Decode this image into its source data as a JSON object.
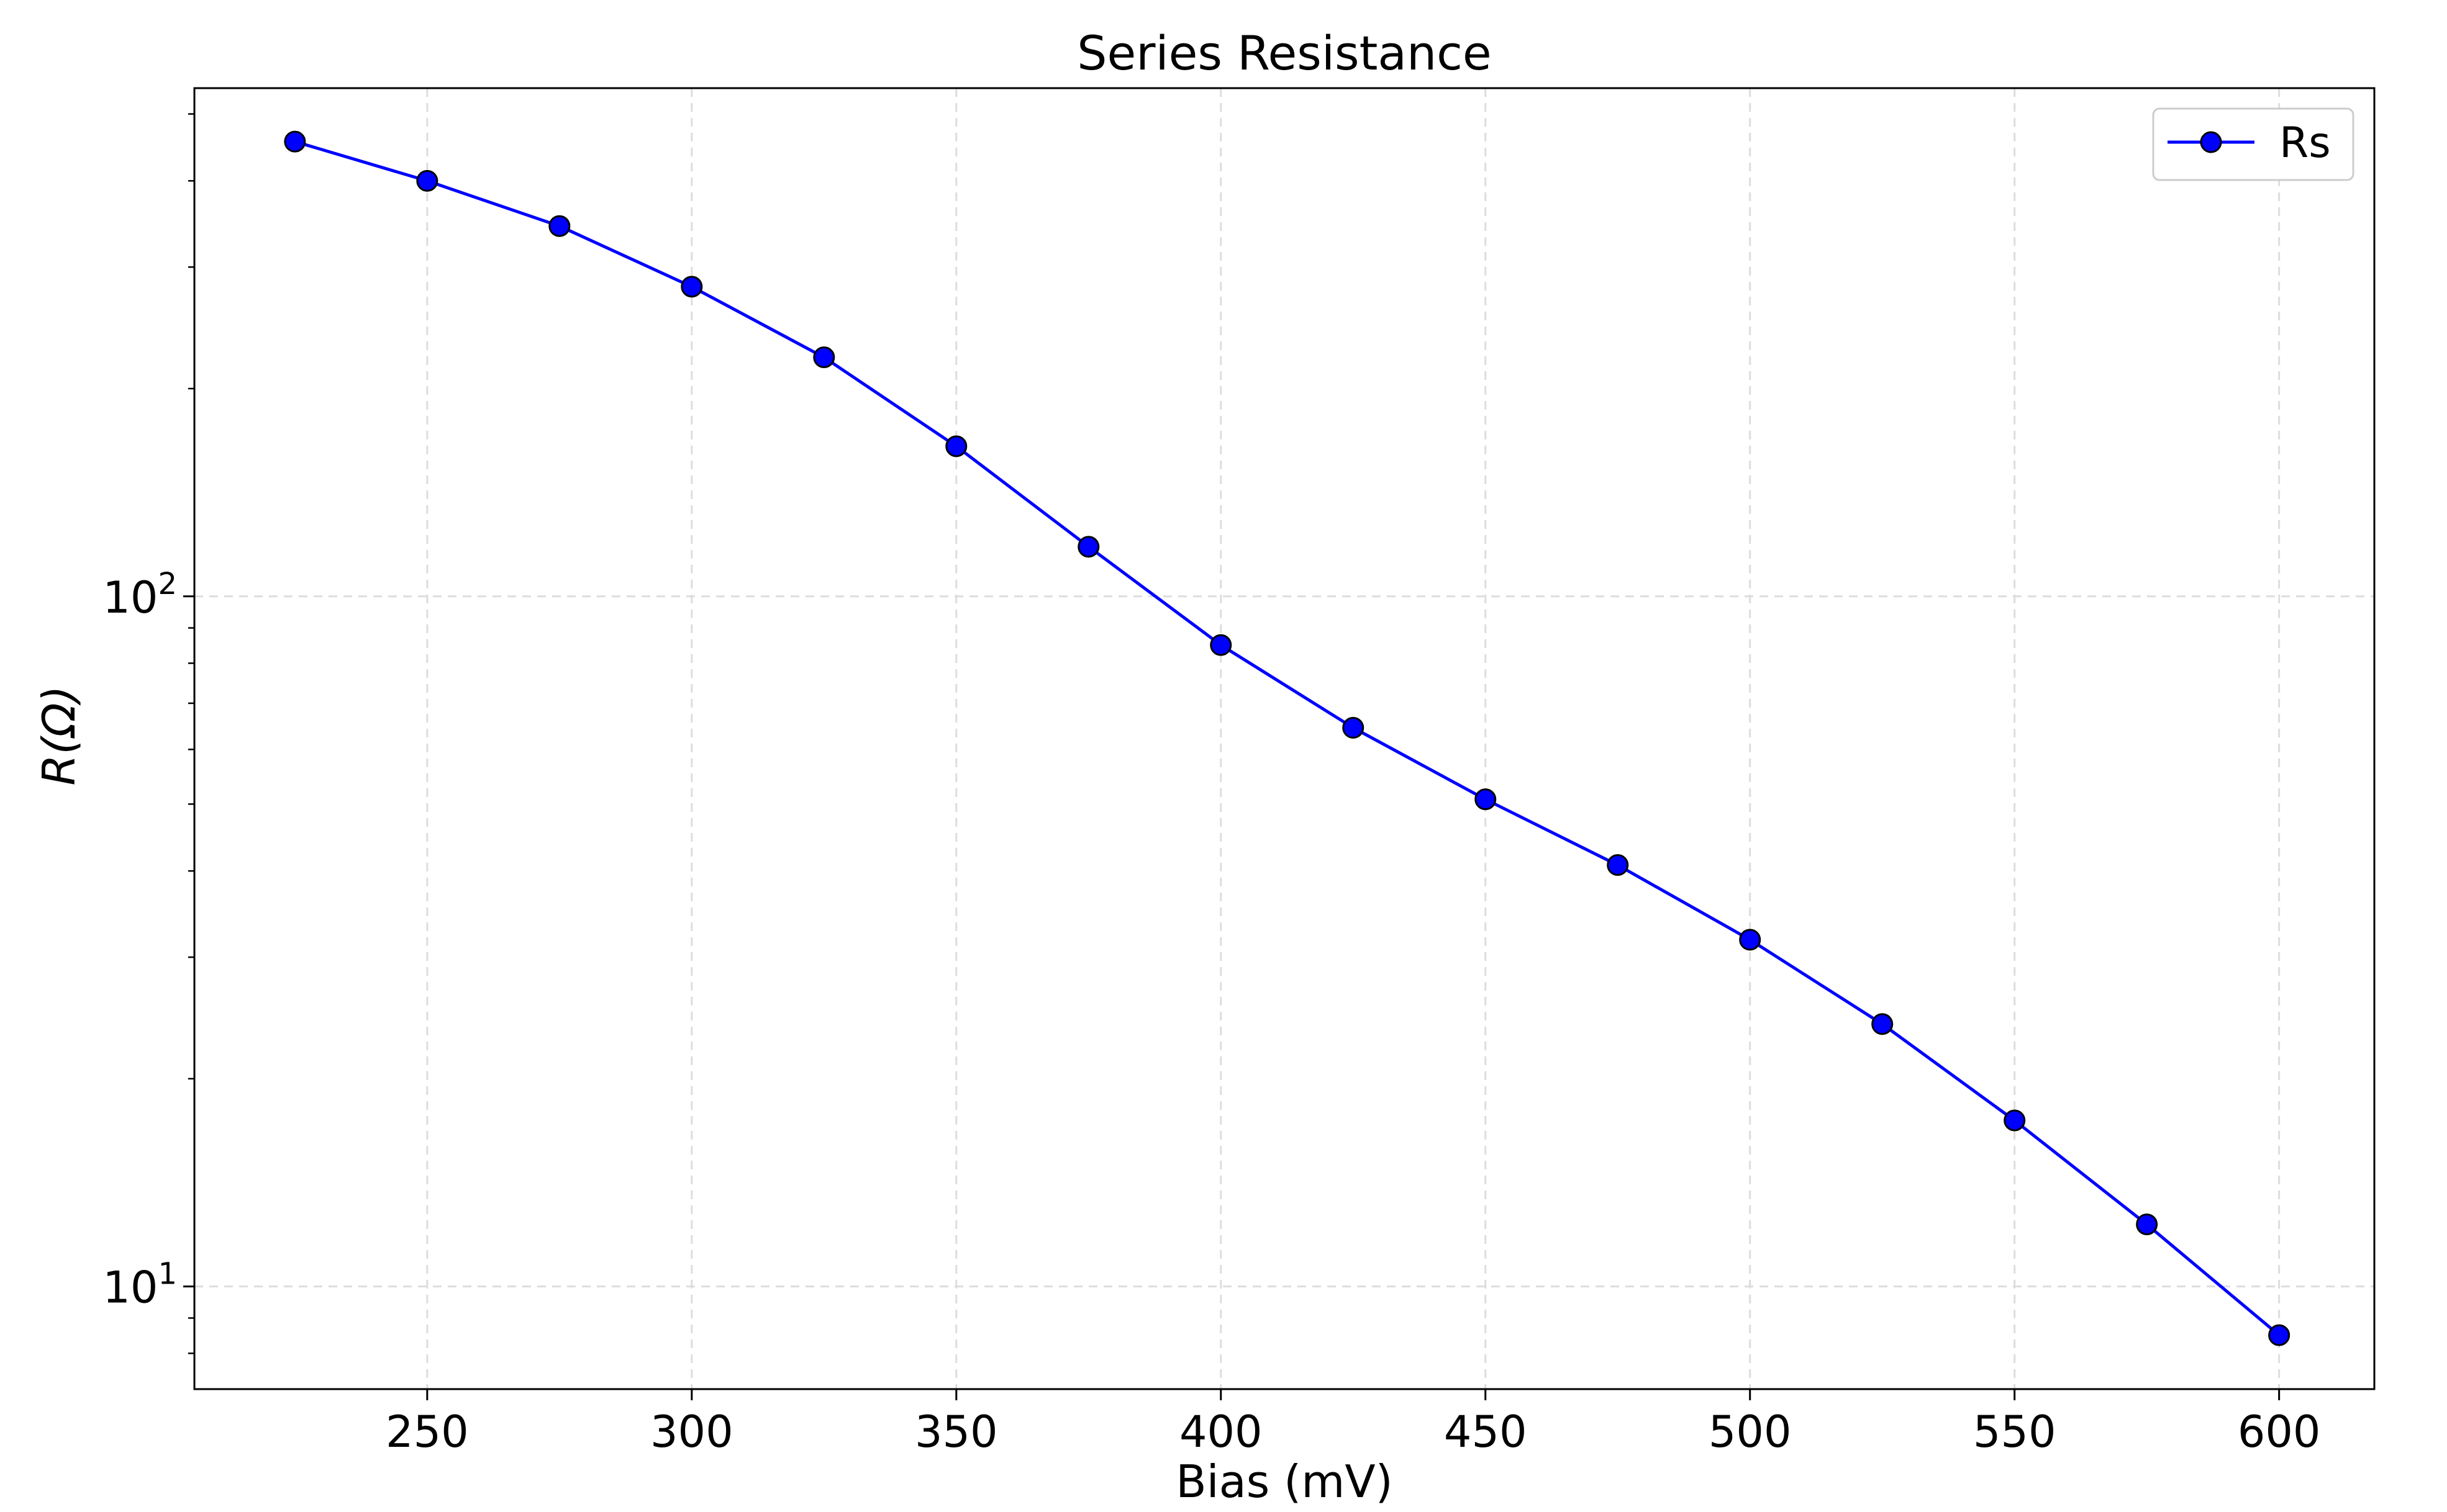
{
  "chart_data": {
    "type": "line",
    "title": "Series Resistance",
    "xlabel": "Bias (mV)",
    "ylabel": "R(Ω)",
    "x": [
      225,
      250,
      275,
      300,
      325,
      350,
      375,
      400,
      425,
      450,
      475,
      500,
      525,
      550,
      575,
      600
    ],
    "series": [
      {
        "name": "Rs",
        "values": [
          456,
          400,
          344,
          281,
          222,
          165,
          118,
          85,
          64.5,
          50.8,
          40.8,
          31.8,
          24.0,
          17.4,
          12.3,
          8.5
        ]
      }
    ],
    "xlim": [
      206,
      618
    ],
    "ylim": [
      7.1,
      545
    ],
    "yscale": "log",
    "xticks": [
      250,
      300,
      350,
      400,
      450,
      500,
      550,
      600
    ],
    "xtick_labels": [
      "250",
      "300",
      "350",
      "400",
      "450",
      "500",
      "550",
      "600"
    ],
    "ytick_major": [
      10,
      100
    ],
    "ytick_base": "10",
    "ytick_exponents": [
      "1",
      "2"
    ],
    "grid": true,
    "legend_position": "top-right",
    "colors": {
      "line": "#0000ff",
      "marker_fill": "#0000ff",
      "marker_edge": "#000000",
      "grid": "#dddddd",
      "axes": "#000000"
    }
  }
}
